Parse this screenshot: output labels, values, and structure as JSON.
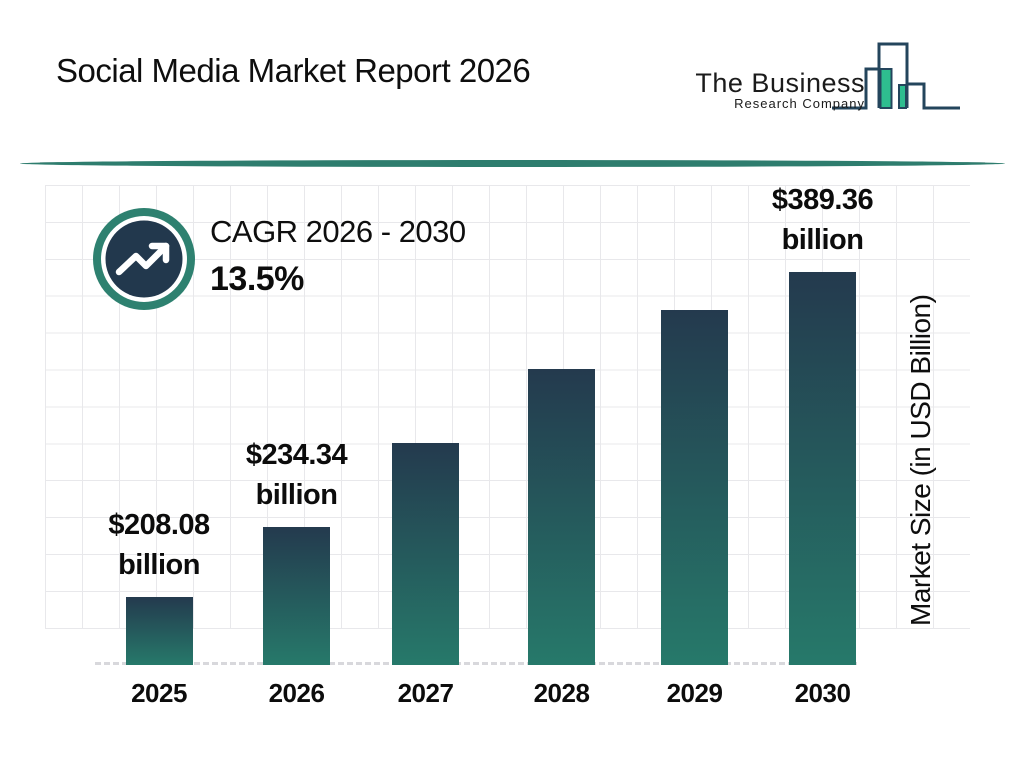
{
  "header": {
    "title": "Social Media Market Report 2026",
    "logo": {
      "line1": "The Business",
      "line2": "Research Company"
    }
  },
  "cagr": {
    "label": "CAGR 2026 - 2030",
    "value": "13.5%"
  },
  "chart_data": {
    "type": "bar",
    "title": "Social Media Market Report 2026",
    "categories": [
      "2025",
      "2026",
      "2027",
      "2028",
      "2029",
      "2030"
    ],
    "values": [
      208.08,
      234.34,
      266.0,
      301.9,
      342.6,
      389.36
    ],
    "value_labels": [
      "$208.08 billion",
      "$234.34 billion",
      "",
      "",
      "",
      "$389.36 billion"
    ],
    "labeled_bars_note": "only 2025, 2026 and 2030 carry visible data labels; middle values estimated from 13.5% CAGR",
    "xlabel": "",
    "ylabel": "Market Size (in USD Billion)",
    "unit": "USD Billion",
    "grid": true,
    "legend": false,
    "colors": {
      "bar_gradient_top": "#243a4e",
      "bar_gradient_bottom": "#26796a",
      "accent_teal": "#2e7d6e",
      "badge_ring": "#2e8170",
      "badge_inner": "#22384d",
      "logo_outline": "#24455c",
      "logo_green": "#2ebd8f",
      "grid_line": "#e8e8eb",
      "baseline_dash": "#d8d8dc",
      "text": "#0e0e0e"
    }
  }
}
